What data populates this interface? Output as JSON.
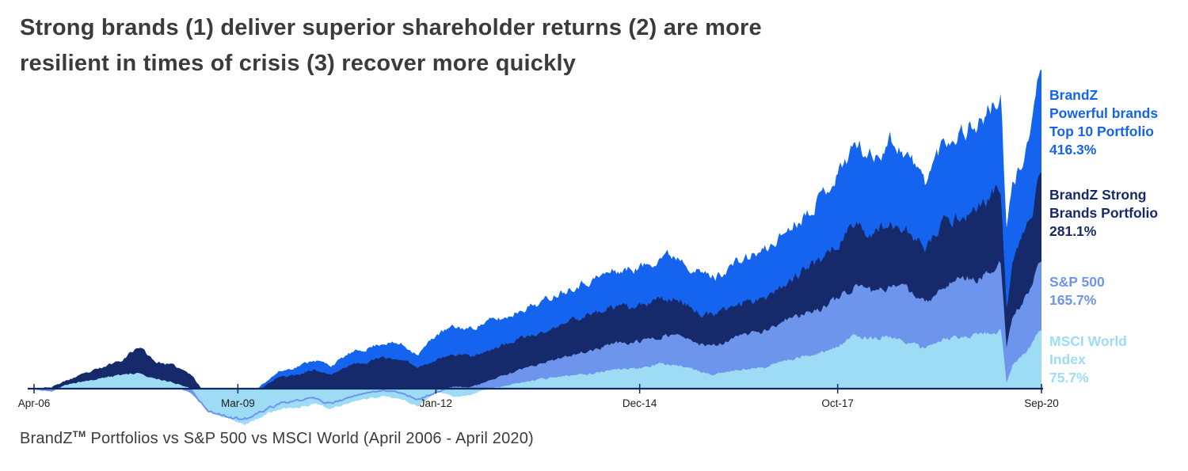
{
  "title": {
    "line1": "Strong brands (1) deliver superior shareholder returns (2) are more",
    "line2": "resilient in times of crisis (3) recover more quickly"
  },
  "footer": {
    "brand": "BrandZ",
    "tm": "TM",
    "rest": " Portfolios vs S&P 500 vs MSCI World (April 2006 - April 2020)"
  },
  "colors": {
    "powerful_blue": "#1464F0",
    "strong_navy": "#16296B",
    "sp500_blue": "#6E95EC",
    "msci_light_blue": "#9EDCF6",
    "axis_line": "#0F2A5E",
    "axis_label_text": "#1c1c1c",
    "title_text": "#3b3b3b"
  },
  "legend": [
    {
      "lines": [
        "BrandZ",
        "Powerful brands",
        "Top 10 Portfolio",
        "416.3%"
      ],
      "color": "#1464F0"
    },
    {
      "lines": [
        "BrandZ Strong",
        "Brands Portfolio",
        "281.1%"
      ],
      "color": "#16296B"
    },
    {
      "lines": [
        "S&P 500",
        "165.7%"
      ],
      "color": "#6E95EC"
    },
    {
      "lines": [
        "MSCI World",
        "Index",
        "75.7%"
      ],
      "color": "#9EDCF6"
    }
  ],
  "chart_data": {
    "type": "area",
    "title": "Strong brands (1) deliver superior shareholder returns (2) are more resilient in times of crisis (3) recover more quickly",
    "subtitle": "BrandZ Portfolios vs S&P 500 vs MSCI World (April 2006 - April 2020)",
    "y_unit": "cumulative return %",
    "ylim": [
      -60,
      430
    ],
    "grid": false,
    "legend_position": "right",
    "x_tick_labels": [
      "Apr-06",
      "Mar-09",
      "Jan-12",
      "Dec-14",
      "Oct-17",
      "Sep-20"
    ],
    "x_tick_months": [
      0,
      35,
      69,
      104,
      138,
      173
    ],
    "dates": [
      "2006-04",
      "2006-07",
      "2006-10",
      "2007-01",
      "2007-04",
      "2007-07",
      "2007-10",
      "2008-01",
      "2008-04",
      "2008-07",
      "2008-10",
      "2009-01",
      "2009-04",
      "2009-07",
      "2009-10",
      "2010-01",
      "2010-04",
      "2010-07",
      "2010-10",
      "2011-01",
      "2011-04",
      "2011-07",
      "2011-10",
      "2012-01",
      "2012-04",
      "2012-07",
      "2012-10",
      "2013-01",
      "2013-04",
      "2013-07",
      "2013-10",
      "2014-01",
      "2014-04",
      "2014-07",
      "2014-10",
      "2015-01",
      "2015-04",
      "2015-07",
      "2015-10",
      "2016-01",
      "2016-04",
      "2016-07",
      "2016-10",
      "2017-01",
      "2017-04",
      "2017-07",
      "2017-10",
      "2018-01",
      "2018-04",
      "2018-07",
      "2018-10",
      "2019-01",
      "2019-04",
      "2019-07",
      "2019-10",
      "2020-01",
      "2020-02",
      "2020-03",
      "2020-04",
      "2020-07",
      "2020-09"
    ],
    "series": [
      {
        "name": "BrandZ Powerful brands Top 10 Portfolio",
        "final_value": 416.3,
        "final_label": "416.3%",
        "color": "#1464F0",
        "values": [
          0,
          1,
          10,
          18,
          25,
          35,
          48,
          32,
          28,
          15,
          -15,
          -20,
          -22,
          5,
          22,
          28,
          38,
          30,
          45,
          52,
          60,
          58,
          45,
          70,
          80,
          78,
          88,
          92,
          105,
          112,
          125,
          135,
          142,
          152,
          155,
          160,
          175,
          172,
          152,
          145,
          162,
          172,
          182,
          205,
          225,
          250,
          280,
          320,
          300,
          325,
          305,
          270,
          320,
          335,
          345,
          370,
          380,
          205,
          260,
          330,
          416.3
        ]
      },
      {
        "name": "BrandZ Strong Brands Portfolio",
        "final_value": 281.1,
        "final_label": "281.1%",
        "color": "#16296B",
        "values": [
          0,
          2,
          12,
          20,
          28,
          38,
          55,
          35,
          30,
          18,
          -12,
          -18,
          -20,
          0,
          15,
          18,
          25,
          18,
          30,
          35,
          40,
          38,
          28,
          38,
          45,
          43,
          50,
          58,
          66,
          72,
          80,
          92,
          98,
          105,
          105,
          108,
          118,
          115,
          100,
          95,
          108,
          115,
          122,
          138,
          152,
          168,
          190,
          215,
          200,
          218,
          205,
          180,
          215,
          225,
          235,
          255,
          258,
          105,
          160,
          220,
          281.1
        ]
      },
      {
        "name": "S&P 500",
        "final_value": 165.7,
        "final_label": "165.7%",
        "color": "#6E95EC",
        "values": [
          0,
          -3,
          4,
          8,
          11,
          15,
          18,
          8,
          5,
          -5,
          -28,
          -35,
          -42,
          -30,
          -20,
          -16,
          -12,
          -20,
          -12,
          -5,
          -2,
          -5,
          -14,
          -5,
          3,
          2,
          10,
          18,
          25,
          32,
          38,
          45,
          50,
          58,
          60,
          62,
          70,
          68,
          58,
          55,
          65,
          72,
          76,
          88,
          96,
          105,
          118,
          135,
          125,
          135,
          128,
          110,
          135,
          142,
          145,
          158,
          162,
          52,
          90,
          130,
          165.7
        ]
      },
      {
        "name": "MSCI World Index",
        "final_value": 75.7,
        "final_label": "75.7%",
        "color": "#9EDCF6",
        "values": [
          0,
          -2,
          6,
          10,
          14,
          18,
          22,
          12,
          8,
          0,
          -30,
          -38,
          -48,
          -35,
          -27,
          -25,
          -20,
          -25,
          -18,
          -13,
          -10,
          -13,
          -22,
          -3,
          -10,
          -8,
          0,
          4,
          8,
          12,
          15,
          18,
          20,
          24,
          25,
          28,
          33,
          30,
          22,
          18,
          24,
          26,
          30,
          36,
          42,
          48,
          55,
          70,
          64,
          68,
          60,
          52,
          64,
          68,
          70,
          75,
          78,
          7,
          30,
          55,
          75.7
        ]
      }
    ]
  }
}
